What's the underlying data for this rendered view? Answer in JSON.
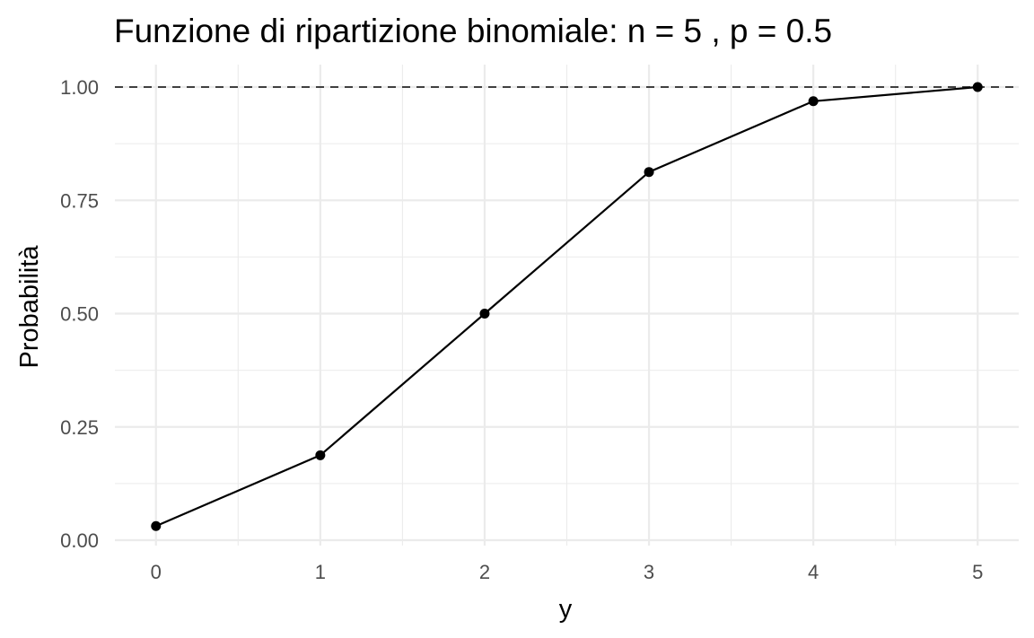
{
  "chart_data": {
    "type": "line",
    "title": "Funzione di ripartizione binomiale: n = 5 , p = 0.5",
    "xlabel": "y",
    "ylabel": "Probabilità",
    "x": [
      0,
      1,
      2,
      3,
      4,
      5
    ],
    "series": [
      {
        "values": [
          0.03125,
          0.1875,
          0.5,
          0.8125,
          0.96875,
          1.0
        ]
      }
    ],
    "xlim": [
      -0.25,
      5.25
    ],
    "ylim": [
      0,
      1
    ],
    "x_ticks": [
      "0",
      "1",
      "2",
      "3",
      "4",
      "5"
    ],
    "y_ticks": [
      "0.00",
      "0.25",
      "0.50",
      "0.75",
      "1.00"
    ],
    "reference_line": {
      "y": 1.0,
      "style": "dashed"
    },
    "grid": true,
    "legend": "none",
    "colors": {
      "line": "#000000",
      "reference": "#404040",
      "grid": "#ebebeb"
    }
  }
}
